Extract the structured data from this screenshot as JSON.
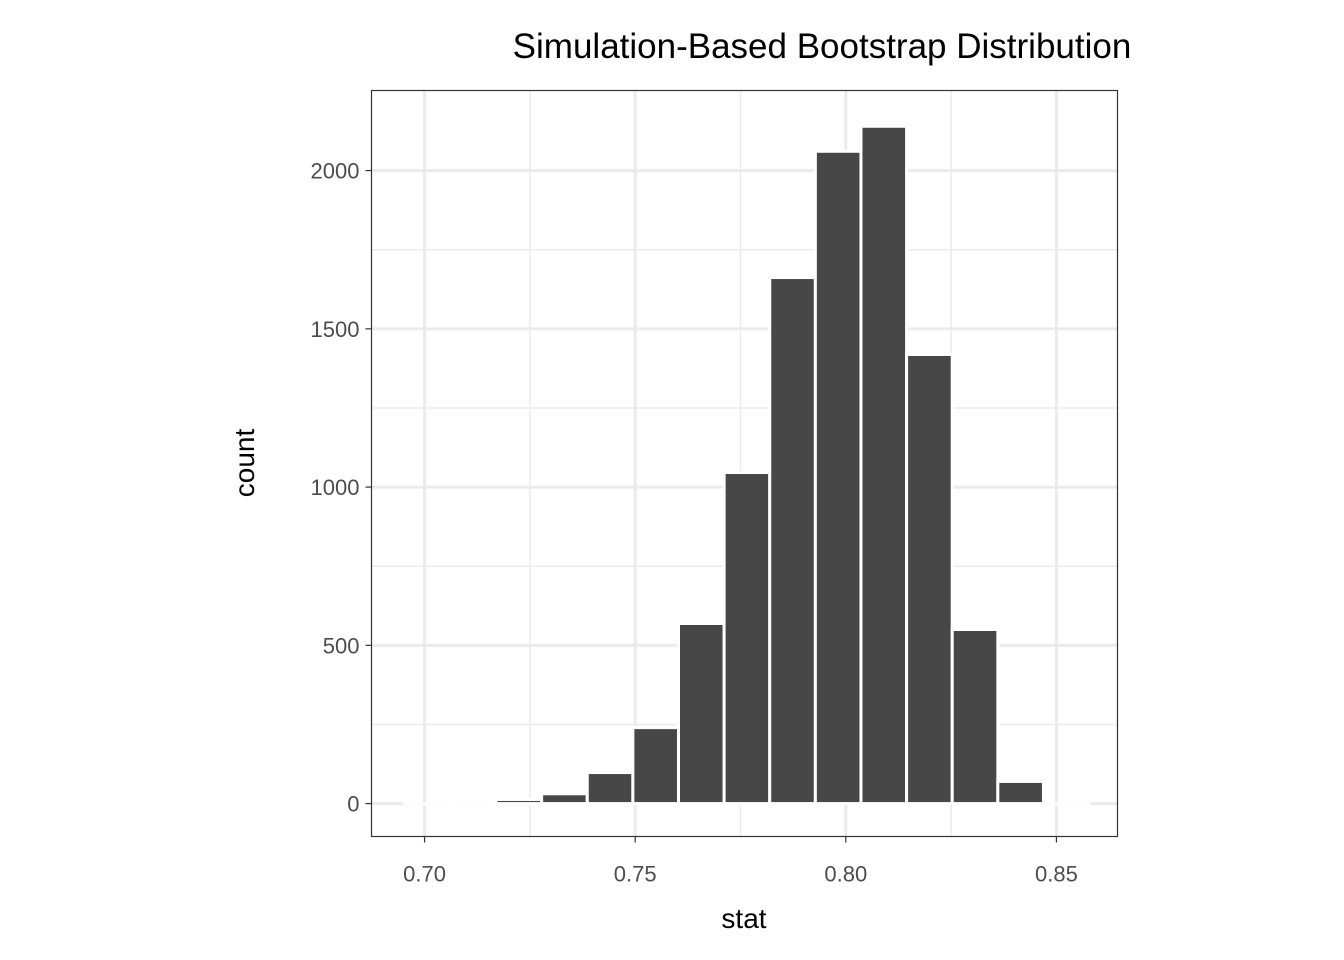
{
  "chart_data": {
    "type": "bar",
    "title": "Simulation-Based Bootstrap Distribution",
    "xlabel": "stat",
    "ylabel": "count",
    "bin_start": 0.6953,
    "bin_width": 0.01083,
    "bin_centers": [
      0.7007,
      0.7115,
      0.7224,
      0.7332,
      0.744,
      0.7548,
      0.7657,
      0.7765,
      0.7873,
      0.7982,
      0.809,
      0.8198,
      0.8307,
      0.8415,
      0.8523
    ],
    "values": [
      0,
      0,
      13,
      31,
      98,
      240,
      569,
      1046,
      1662,
      2061,
      2140,
      1419,
      550,
      70,
      0
    ],
    "xlim": [
      0.6874,
      0.8645
    ],
    "ylim": [
      -104,
      2253
    ],
    "x_ticks": [
      0.7,
      0.75,
      0.8,
      0.85
    ],
    "x_tick_labels": [
      "0.70",
      "0.75",
      "0.80",
      "0.85"
    ],
    "y_ticks": [
      0,
      500,
      1000,
      1500,
      2000
    ],
    "y_tick_labels": [
      "0",
      "500",
      "1000",
      "1500",
      "2000"
    ],
    "grid": true,
    "bar_fill": "#474747",
    "bar_outline": "#ffffff",
    "grid_color": "#ebebeb",
    "panel_border": "#333333"
  }
}
